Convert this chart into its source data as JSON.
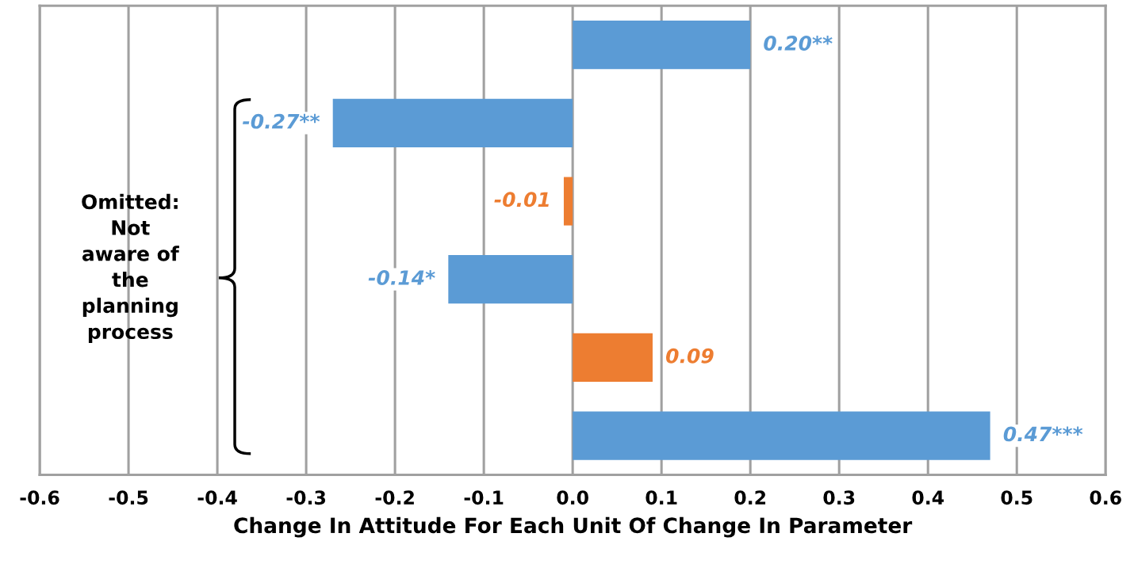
{
  "chart_data": {
    "type": "bar",
    "orientation": "horizontal",
    "xlabel": "Change In Attitude For Each Unit Of Change In Parameter",
    "categories": [
      null,
      null,
      null,
      null,
      null,
      null
    ],
    "values": [
      0.2,
      -0.27,
      -0.01,
      -0.14,
      0.09,
      0.47
    ],
    "colors": [
      "#5b9bd5",
      "#5b9bd5",
      "#ed7d31",
      "#5b9bd5",
      "#ed7d31",
      "#5b9bd5"
    ],
    "value_labels": [
      "0.20**",
      "-0.27**",
      "-0.01",
      "-0.14*",
      "0.09",
      "0.47***"
    ],
    "xlim": [
      -0.6,
      0.6
    ],
    "xticks": [
      -0.6,
      -0.5,
      -0.4,
      -0.3,
      -0.2,
      -0.1,
      {
        "value": 0,
        "label": "0.0"
      },
      0.1,
      0.2,
      0.3,
      0.4,
      0.5,
      0.6
    ],
    "grid": "x",
    "tick_labels": "x",
    "annotations": [
      "Omitted:\nNot\naware of\nthe\nplanning\nprocess"
    ]
  }
}
